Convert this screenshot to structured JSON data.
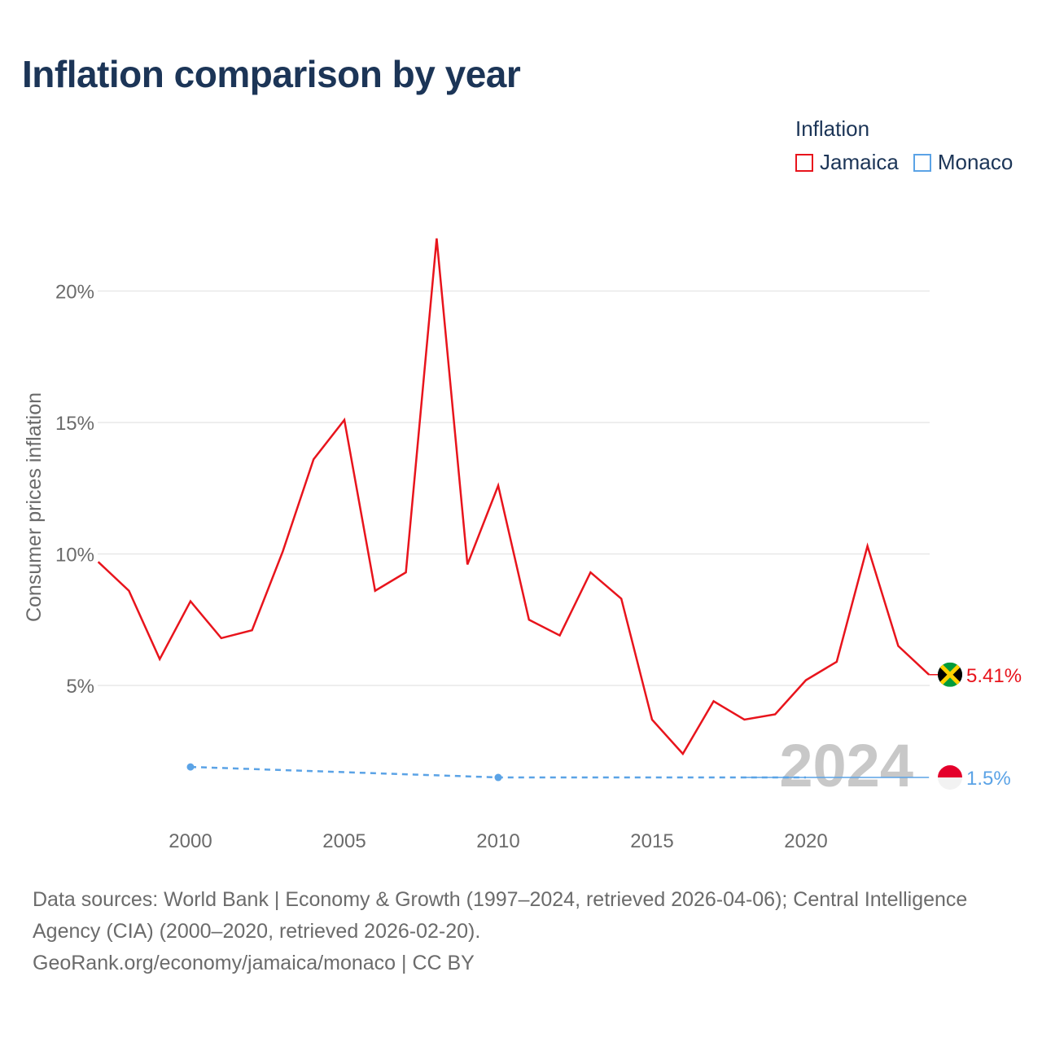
{
  "title": "Inflation comparison by year",
  "legend": {
    "title": "Inflation",
    "items": [
      {
        "name": "Jamaica",
        "color": "#e8141c"
      },
      {
        "name": "Monaco",
        "color": "#5ba3e6"
      }
    ]
  },
  "watermark_year": "2024",
  "source": {
    "text": "Data sources: World Bank | Economy & Growth (1997–2024, retrieved 2026-04-06); Central Intelligence Agency (CIA) (2000–2020, retrieved 2026-02-20).",
    "credit": "GeoRank.org/economy/jamaica/monaco | CC BY"
  },
  "chart_data": {
    "type": "line",
    "title": "Inflation comparison by year",
    "xlabel": "",
    "ylabel": "Consumer prices inflation",
    "xlim": [
      1997,
      2024
    ],
    "ylim": [
      0,
      22
    ],
    "x_ticks": [
      2000,
      2005,
      2010,
      2015,
      2020
    ],
    "y_ticks": [
      {
        "value": 5,
        "label": "5%"
      },
      {
        "value": 10,
        "label": "10%"
      },
      {
        "value": 15,
        "label": "15%"
      },
      {
        "value": 20,
        "label": "20%"
      }
    ],
    "grid": true,
    "legend_position": "top-right",
    "series": [
      {
        "name": "Jamaica",
        "color": "#e8141c",
        "style": "solid",
        "end_label": "5.41%",
        "flag": "jamaica",
        "x": [
          1997,
          1998,
          1999,
          2000,
          2001,
          2002,
          2003,
          2004,
          2005,
          2006,
          2007,
          2008,
          2009,
          2010,
          2011,
          2012,
          2013,
          2014,
          2015,
          2016,
          2017,
          2018,
          2019,
          2020,
          2021,
          2022,
          2023,
          2024
        ],
        "values": [
          9.7,
          8.6,
          6.0,
          8.2,
          6.8,
          7.1,
          10.1,
          13.6,
          15.1,
          8.6,
          9.3,
          22.0,
          9.6,
          12.6,
          7.5,
          6.9,
          9.3,
          8.3,
          3.7,
          2.4,
          4.4,
          3.7,
          3.9,
          5.2,
          5.9,
          10.3,
          6.5,
          5.41
        ]
      },
      {
        "name": "Monaco",
        "color": "#5ba3e6",
        "style": "dashed",
        "end_label": "1.5%",
        "flag": "monaco",
        "x": [
          2000,
          2010,
          2020
        ],
        "values": [
          1.9,
          1.5,
          1.5
        ],
        "extension_x": [
          2018,
          2024
        ],
        "extension_values": [
          1.5,
          1.5
        ]
      }
    ]
  }
}
